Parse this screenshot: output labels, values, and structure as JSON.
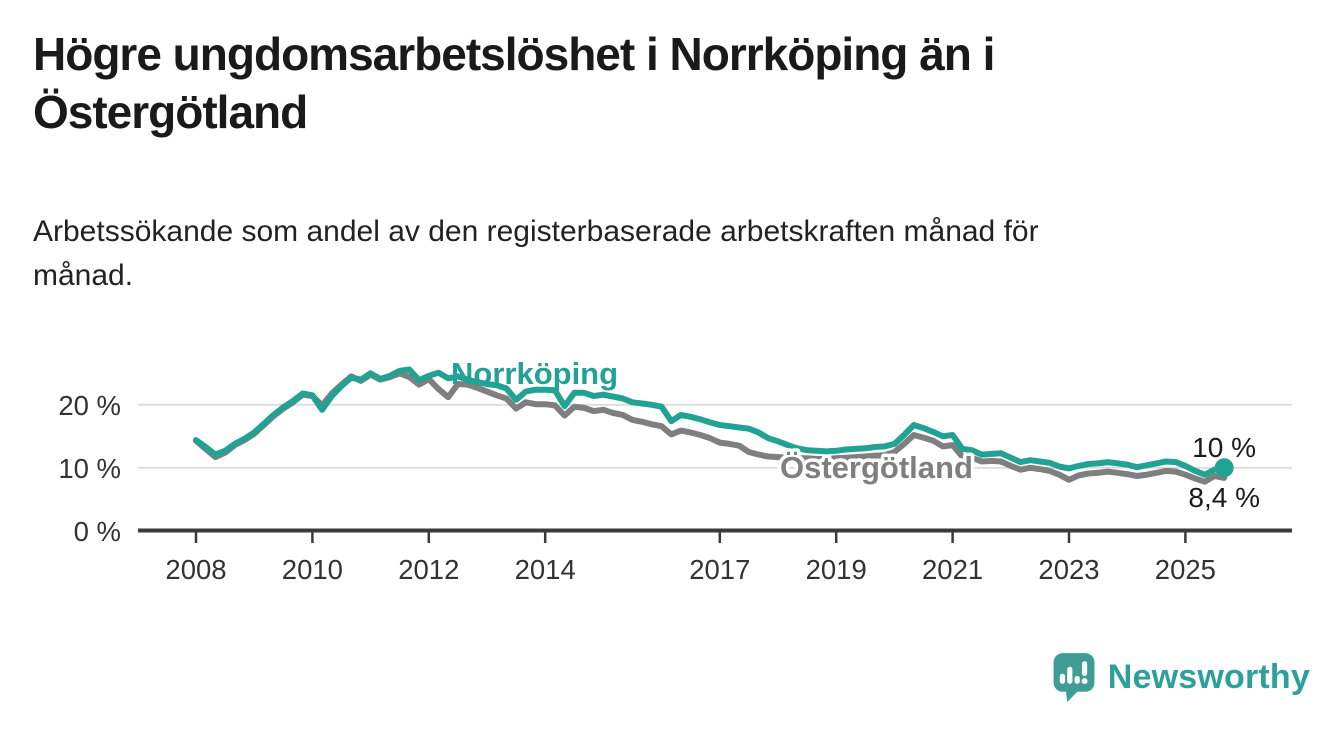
{
  "theme": {
    "background": "#ffffff",
    "text": "#333333",
    "title_color": "#1a1a1a",
    "axis": "#3a3a3a",
    "grid": "#d9d9d9",
    "brand": "#2da099"
  },
  "branding": {
    "name": "Newsworthy",
    "icon": "speech-bubble-bar-chart"
  },
  "chart_data": {
    "type": "line",
    "title": "Högre ungdomsarbetslöshet i Norrköping än i Östergötland",
    "subtitle": "Arbetssökande som andel av den registerbaserade arbetskraften månad för månad.",
    "unit": "%",
    "x_start_year": 2008,
    "x_step_months": 2,
    "x_tick_values": [
      2008,
      2010,
      2012,
      2014,
      2017,
      2019,
      2021,
      2023,
      2025
    ],
    "x_tick_labels": [
      "2008",
      "2010",
      "2012",
      "2014",
      "2017",
      "2019",
      "2021",
      "2023",
      "2025"
    ],
    "y_tick_values": [
      0,
      10,
      20
    ],
    "y_tick_labels": [
      "0 %",
      "10 %",
      "20 %"
    ],
    "ylim": [
      0,
      27
    ],
    "grid": "horizontal",
    "legend_position": "inline-labels",
    "series": [
      {
        "name": "Norrköping",
        "color": "#21a295",
        "end_label": "10 %",
        "end_value": 10.0,
        "values": [
          14.4,
          13.3,
          12.1,
          12.7,
          13.8,
          14.6,
          15.6,
          17.0,
          18.4,
          19.6,
          20.6,
          21.8,
          21.5,
          19.2,
          21.4,
          23.0,
          24.3,
          24.0,
          25.0,
          24.1,
          24.6,
          25.4,
          25.6,
          23.9,
          24.6,
          25.1,
          24.2,
          24.5,
          24.0,
          23.6,
          23.3,
          23.1,
          22.6,
          20.8,
          22.1,
          22.4,
          22.4,
          22.3,
          19.8,
          21.9,
          21.9,
          21.4,
          21.6,
          21.3,
          21.0,
          20.4,
          20.2,
          20.0,
          19.7,
          17.4,
          18.4,
          18.1,
          17.7,
          17.2,
          16.8,
          16.6,
          16.4,
          16.2,
          15.6,
          14.7,
          14.2,
          13.6,
          13.1,
          12.8,
          12.7,
          12.6,
          12.7,
          12.9,
          13.0,
          13.1,
          13.3,
          13.4,
          13.8,
          15.2,
          16.8,
          16.3,
          15.7,
          15.0,
          15.2,
          13.0,
          12.8,
          12.1,
          12.2,
          12.3,
          11.6,
          10.9,
          11.2,
          11.0,
          10.8,
          10.2,
          9.9,
          10.3,
          10.6,
          10.7,
          10.9,
          10.7,
          10.5,
          10.1,
          10.4,
          10.7,
          11.0,
          10.9,
          10.3,
          9.5,
          8.9,
          9.7,
          10.0
        ]
      },
      {
        "name": "Östergötland",
        "color": "#7f7f7f",
        "end_label": "8,4 %",
        "end_value": 8.4,
        "values": [
          14.3,
          13.0,
          11.7,
          12.4,
          13.6,
          14.4,
          15.4,
          16.8,
          18.2,
          19.4,
          20.4,
          21.6,
          21.4,
          19.9,
          21.8,
          23.2,
          24.5,
          23.8,
          24.8,
          24.0,
          24.4,
          25.0,
          24.4,
          23.2,
          24.1,
          22.5,
          21.2,
          23.3,
          23.2,
          22.7,
          22.1,
          21.5,
          21.0,
          19.4,
          20.4,
          20.1,
          20.1,
          19.9,
          18.3,
          19.7,
          19.5,
          19.0,
          19.2,
          18.7,
          18.4,
          17.6,
          17.3,
          16.9,
          16.6,
          15.3,
          15.9,
          15.6,
          15.2,
          14.7,
          14.0,
          13.8,
          13.5,
          12.5,
          12.1,
          11.8,
          11.7,
          11.6,
          11.5,
          11.5,
          11.4,
          11.4,
          11.5,
          11.6,
          11.7,
          11.8,
          11.9,
          12.0,
          12.5,
          13.8,
          15.2,
          14.8,
          14.3,
          13.4,
          13.6,
          11.8,
          11.6,
          11.0,
          11.1,
          11.0,
          10.3,
          9.7,
          10.0,
          9.8,
          9.5,
          8.9,
          8.1,
          8.8,
          9.1,
          9.2,
          9.4,
          9.2,
          9.0,
          8.7,
          8.9,
          9.2,
          9.5,
          9.4,
          8.9,
          8.3,
          7.8,
          8.7,
          8.4
        ]
      }
    ]
  }
}
